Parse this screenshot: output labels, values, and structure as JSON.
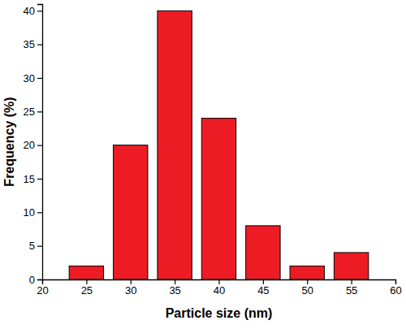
{
  "chart_data": {
    "type": "bar",
    "x_label": "Particle size (nm)",
    "y_label": "Frequency (%)",
    "x": [
      25,
      30,
      35,
      40,
      45,
      50,
      55
    ],
    "values": [
      2,
      20,
      40,
      24,
      8,
      2,
      4
    ],
    "color": "#ed1c24",
    "xlim": [
      20,
      60
    ],
    "xticks": [
      20,
      25,
      30,
      35,
      40,
      45,
      50,
      55,
      60
    ],
    "ylim": [
      0,
      41
    ],
    "yticks": [
      0,
      5,
      10,
      15,
      20,
      25,
      30,
      35,
      40
    ],
    "grid": false
  }
}
